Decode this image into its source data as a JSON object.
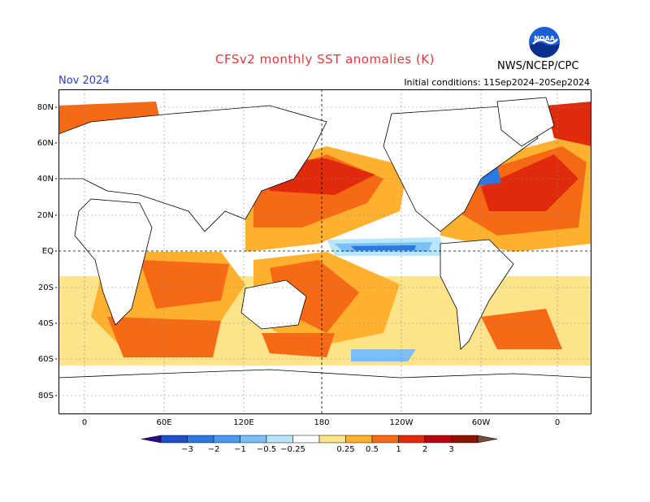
{
  "title": "CFSv2 monthly SST anomalies (K)",
  "period": "Nov 2024",
  "initial_conditions": "Initial conditions: 11Sep2024–20Sep2024",
  "agency": "NWS/NCEP/CPC",
  "logo_text": "NOAA",
  "lat_labels": [
    "80N",
    "60N",
    "40N",
    "20N",
    "EQ",
    "20S",
    "40S",
    "60S",
    "80S"
  ],
  "lon_labels": [
    "0",
    "60E",
    "120E",
    "180",
    "120W",
    "60W",
    "0"
  ],
  "colorbar": {
    "ticks": [
      "−3",
      "−2",
      "−1",
      "−0.5",
      "−0.25",
      "0.25",
      "0.5",
      "1",
      "2",
      "3"
    ],
    "colors": [
      "#2a0b8f",
      "#1f4fc8",
      "#2a78e0",
      "#4a9af0",
      "#7ac0f5",
      "#b8e6fa",
      "#ffffff",
      "#fde38a",
      "#fdb12e",
      "#f76a15",
      "#df2a0c",
      "#b8070a",
      "#8a1600",
      "#7a4a3a"
    ]
  }
}
